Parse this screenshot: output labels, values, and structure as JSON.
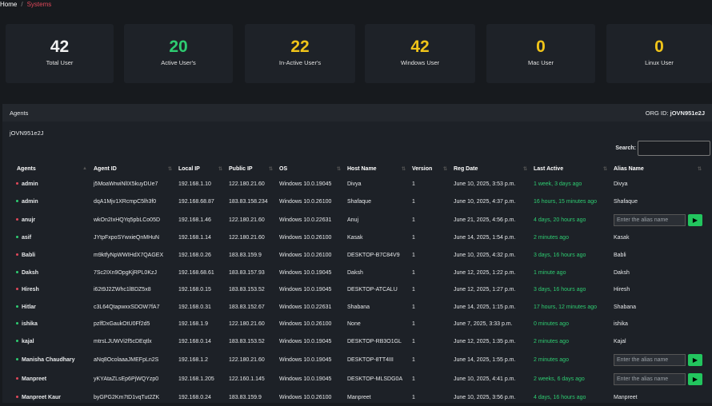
{
  "breadcrumb": {
    "home": "Home",
    "separator": "/",
    "current": "Systems"
  },
  "stats": [
    {
      "value": "42",
      "label": "Total User",
      "color": "#f2f2f2"
    },
    {
      "value": "20",
      "label": "Active User's",
      "color": "#2ecc71"
    },
    {
      "value": "22",
      "label": "In-Active User's",
      "color": "#f0c419"
    },
    {
      "value": "42",
      "label": "Windows User",
      "color": "#f0c419"
    },
    {
      "value": "0",
      "label": "Mac User",
      "color": "#f0c419"
    },
    {
      "value": "0",
      "label": "Linux User",
      "color": "#f0c419"
    }
  ],
  "panel": {
    "title": "Agents",
    "org_label": "ORG ID:",
    "org_id": "jOVN951e2J",
    "org_line": "jOVN951e2J",
    "search_label": "Search:",
    "search_value": ""
  },
  "table": {
    "columns": [
      "Agents",
      "Agent ID",
      "Local IP",
      "Public IP",
      "OS",
      "Host Name",
      "Version",
      "Reg Date",
      "Last Active",
      "Alias Name"
    ],
    "alias_placeholder": "Enter the alias name",
    "rows": [
      {
        "status": "red",
        "agent": "admin",
        "id": "j5MoaWrwiNlIX5kuyDUe7",
        "local": "192.168.1.10",
        "public": "122.180.21.60",
        "os": "Windows 10.0.19045",
        "host": "Divya",
        "version": "1",
        "reg": "June 10, 2025, 3:53 p.m.",
        "last": "1 week, 3 days ago",
        "alias": "Divya"
      },
      {
        "status": "green",
        "agent": "admin",
        "id": "dqA1Mjv1XRcmpC5lh3f0",
        "local": "192.168.68.87",
        "public": "183.83.158.234",
        "os": "Windows 10.0.26100",
        "host": "Shafaque",
        "version": "1",
        "reg": "June 10, 2025, 4:37 p.m.",
        "last": "16 hours, 15 minutes ago",
        "alias": "Shafaque"
      },
      {
        "status": "red",
        "agent": "anujr",
        "id": "wkOn2IxHQYq5pbLCo05D",
        "local": "192.168.1.46",
        "public": "122.180.21.60",
        "os": "Windows 10.0.22631",
        "host": "Anuj",
        "version": "1",
        "reg": "June 21, 2025, 4:56 p.m.",
        "last": "4 days, 20 hours ago",
        "alias": null
      },
      {
        "status": "green",
        "agent": "asif",
        "id": "JYtpFxpoSYwxieQnMHuN",
        "local": "192.168.1.14",
        "public": "122.180.21.60",
        "os": "Windows 10.0.26100",
        "host": "Kasak",
        "version": "1",
        "reg": "June 14, 2025, 1:54 p.m.",
        "last": "2 minutes ago",
        "alias": "Kasak"
      },
      {
        "status": "red",
        "agent": "Babli",
        "id": "m9ktfyNpWWIHdX7QAGEX",
        "local": "192.168.0.26",
        "public": "183.83.159.9",
        "os": "Windows 10.0.26100",
        "host": "DESKTOP-B7C84V9",
        "version": "1",
        "reg": "June 10, 2025, 4:32 p.m.",
        "last": "3 days, 16 hours ago",
        "alias": "Babli"
      },
      {
        "status": "green",
        "agent": "Daksh",
        "id": "7Sc2IXn9OpgKjRPL0KzJ",
        "local": "192.168.68.61",
        "public": "183.83.157.93",
        "os": "Windows 10.0.19045",
        "host": "Daksh",
        "version": "1",
        "reg": "June 12, 2025, 1:22 p.m.",
        "last": "1 minute ago",
        "alias": "Daksh"
      },
      {
        "status": "red",
        "agent": "Hiresh",
        "id": "i62t9J2ZWhc1lBDZ5x8",
        "local": "192.168.0.15",
        "public": "183.83.153.52",
        "os": "Windows 10.0.19045",
        "host": "DESKTOP-ATCALU",
        "version": "1",
        "reg": "June 12, 2025, 1:27 p.m.",
        "last": "3 days, 16 hours ago",
        "alias": "Hiresh"
      },
      {
        "status": "green",
        "agent": "Hitlar",
        "id": "c3L64QtapwxxSDOW7fA7",
        "local": "192.168.0.31",
        "public": "183.83.152.67",
        "os": "Windows 10.0.22631",
        "host": "Shabana",
        "version": "1",
        "reg": "June 14, 2025, 1:15 p.m.",
        "last": "17 hours, 12 minutes ago",
        "alias": "Shabana"
      },
      {
        "status": "green",
        "agent": "ishika",
        "id": "pzlfDxGaukOtU0Ff2d5",
        "local": "192.168.1.9",
        "public": "122.180.21.60",
        "os": "Windows 10.0.26100",
        "host": "None",
        "version": "1",
        "reg": "June 7, 2025, 3:33 p.m.",
        "last": "0 minutes ago",
        "alias": "ishika"
      },
      {
        "status": "green",
        "agent": "kajal",
        "id": "mtrsLJUWVi2f5cDEqtlx",
        "local": "192.168.0.14",
        "public": "183.83.153.52",
        "os": "Windows 10.0.19045",
        "host": "DESKTOP-RB3O1GL",
        "version": "1",
        "reg": "June 12, 2025, 1:35 p.m.",
        "last": "2 minutes ago",
        "alias": "Kajal"
      },
      {
        "status": "green",
        "agent": "Manisha Chaudhary",
        "id": "aNq8OcolaaaJMEFpLn2S",
        "local": "192.168.1.2",
        "public": "122.180.21.60",
        "os": "Windows 10.0.19045",
        "host": "DESKTOP-8TT4III",
        "version": "1",
        "reg": "June 14, 2025, 1:55 p.m.",
        "last": "2 minutes ago",
        "alias": null
      },
      {
        "status": "red",
        "agent": "Manpreet",
        "id": "yKYAtaZLsEp6PjWQYzp0",
        "local": "192.168.1.205",
        "public": "122.160.1.145",
        "os": "Windows 10.0.19045",
        "host": "DESKTOP-MLSDG0A",
        "version": "1",
        "reg": "June 10, 2025, 4:41 p.m.",
        "last": "2 weeks, 6 days ago",
        "alias": null
      },
      {
        "status": "red",
        "agent": "Manpreet Kaur",
        "id": "byGPG2Km7tD1vqTut2ZK",
        "local": "192.168.0.24",
        "public": "183.83.159.9",
        "os": "Windows 10.0.26100",
        "host": "Manpreet",
        "version": "1",
        "reg": "June 10, 2025, 3:56 p.m.",
        "last": "4 days, 16 hours ago",
        "alias": "Manpreet"
      }
    ]
  },
  "colors": {
    "red": "#e0485a",
    "green": "#2ecc71",
    "accent": "#22c55e"
  }
}
